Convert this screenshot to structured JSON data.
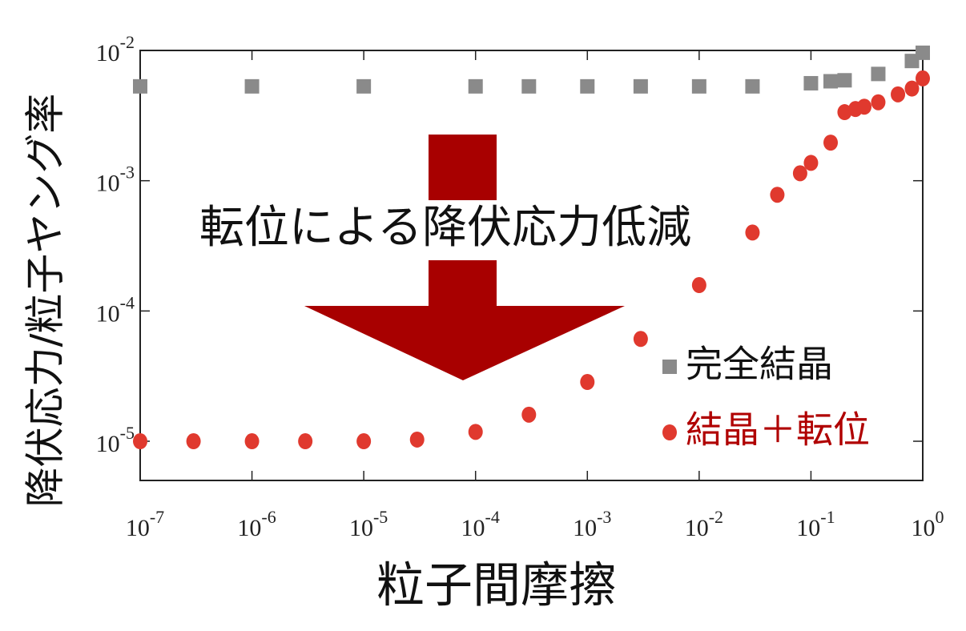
{
  "chart_data": {
    "type": "scatter",
    "x_label": "粒子間摩擦",
    "y_label": "降伏応力/粒子ヤング率",
    "annotation": "転位による降伏応力低減",
    "log_x": true,
    "log_y": true,
    "xlim": [
      1e-07,
      1
    ],
    "ylim": [
      5e-06,
      0.01
    ],
    "xticks": [
      {
        "value": 1e-07,
        "label": "10",
        "sup": "-7"
      },
      {
        "value": 1e-06,
        "label": "10",
        "sup": "-6"
      },
      {
        "value": 1e-05,
        "label": "10",
        "sup": "-5"
      },
      {
        "value": 0.0001,
        "label": "10",
        "sup": "-4"
      },
      {
        "value": 0.001,
        "label": "10",
        "sup": "-3"
      },
      {
        "value": 0.01,
        "label": "10",
        "sup": "-2"
      },
      {
        "value": 0.1,
        "label": "10",
        "sup": "-1"
      },
      {
        "value": 1,
        "label": "10",
        "sup": "0"
      }
    ],
    "yticks": [
      {
        "value": 1e-05,
        "label": "10",
        "sup": "-5"
      },
      {
        "value": 0.0001,
        "label": "10",
        "sup": "-4"
      },
      {
        "value": 0.001,
        "label": "10",
        "sup": "-3"
      },
      {
        "value": 0.01,
        "label": "10",
        "sup": "-2"
      }
    ],
    "series": [
      {
        "name": "完全結晶",
        "color": "#8a8a8a",
        "marker": "square",
        "text_color": "#111111",
        "x": [
          1e-07,
          1e-06,
          1e-05,
          0.0001,
          0.0003,
          0.001,
          0.003,
          0.01,
          0.03,
          0.1,
          0.15,
          0.2,
          0.4,
          0.8,
          1
        ],
        "values": [
          0.0053,
          0.0053,
          0.0053,
          0.0053,
          0.0053,
          0.0053,
          0.0053,
          0.0053,
          0.0053,
          0.0056,
          0.0058,
          0.0059,
          0.0066,
          0.0083,
          0.0096
        ]
      },
      {
        "name": "結晶＋転位",
        "color": "#e0392e",
        "marker": "circle",
        "text_color": "#b00000",
        "x": [
          1e-07,
          3e-07,
          1e-06,
          3e-06,
          1e-05,
          3e-05,
          0.0001,
          0.0003,
          0.001,
          0.003,
          0.01,
          0.03,
          0.05,
          0.08,
          0.1,
          0.15,
          0.2,
          0.25,
          0.3,
          0.4,
          0.6,
          0.8,
          1
        ],
        "values": [
          1e-05,
          1e-05,
          1e-05,
          1e-05,
          1e-05,
          1.03e-05,
          1.18e-05,
          1.6e-05,
          2.85e-05,
          6.1e-05,
          0.000158,
          0.0004,
          0.00078,
          0.00114,
          0.00137,
          0.00196,
          0.00336,
          0.00355,
          0.0037,
          0.004,
          0.0046,
          0.0051,
          0.0061
        ]
      }
    ]
  }
}
